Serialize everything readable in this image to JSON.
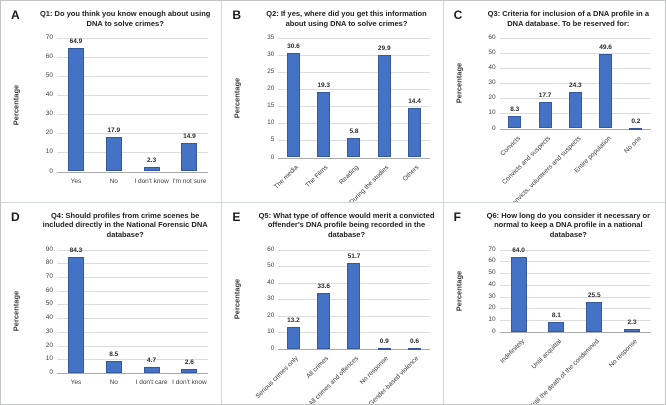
{
  "figure": {
    "background": "#ffffff",
    "border_color": "#c2c6c8"
  },
  "colors": {
    "bar_fill": "#4472c4",
    "bar_border": "#35599c",
    "gridline": "#dcdcdc",
    "axis_line": "#a9a9a9",
    "tick_text": "#404040",
    "title_text": "#212121"
  },
  "chart_data": [
    {
      "panel": "A",
      "type": "bar",
      "title": "Q1: Do you think you know enough about using DNA to solve crimes?",
      "ylabel": "Percentage",
      "xlabel": "",
      "ylim": [
        0,
        70
      ],
      "ytick_step": 10,
      "grid": true,
      "legend": false,
      "xlabel_rotation": 0,
      "categories": [
        "Yes",
        "No",
        "I don't know",
        "I'm not sure"
      ],
      "values": [
        64.9,
        17.9,
        2.3,
        14.9
      ],
      "value_labels": [
        "64.9",
        "17.9",
        "2.3",
        "14.9"
      ]
    },
    {
      "panel": "B",
      "type": "bar",
      "title": "Q2: If yes, where did you get this information about using DNA to solve crimes?",
      "ylabel": "Percentage",
      "xlabel": "",
      "ylim": [
        0,
        35
      ],
      "ytick_step": 5,
      "grid": true,
      "legend": false,
      "xlabel_rotation": 45,
      "categories": [
        "The media",
        "The Films",
        "Reading",
        "During the studies",
        "Others"
      ],
      "values": [
        30.6,
        19.3,
        5.8,
        29.9,
        14.4
      ],
      "value_labels": [
        "30.6",
        "19.3",
        "5.8",
        "29.9",
        "14.4"
      ]
    },
    {
      "panel": "C",
      "type": "bar",
      "title": "Q3: Criteria for inclusion of a DNA profile in a DNA database. To be reserved for:",
      "ylabel": "Percentage",
      "xlabel": "",
      "ylim": [
        0,
        60
      ],
      "ytick_step": 10,
      "grid": true,
      "legend": false,
      "xlabel_rotation": 45,
      "categories": [
        "Convicts",
        "Convicts and suspects",
        "Convicts, volunteers and suspects",
        "Entire population",
        "No one"
      ],
      "values": [
        8.3,
        17.7,
        24.3,
        49.6,
        0.2
      ],
      "value_labels": [
        "8.3",
        "17.7",
        "24.3",
        "49.6",
        "0.2"
      ]
    },
    {
      "panel": "D",
      "type": "bar",
      "title": "Q4: Should profiles from crime scenes be included directly in the National Forensic DNA database?",
      "ylabel": "Percentage",
      "xlabel": "",
      "ylim": [
        0,
        90
      ],
      "ytick_step": 10,
      "grid": true,
      "legend": false,
      "xlabel_rotation": 0,
      "categories": [
        "Yes",
        "No",
        "I don't care",
        "I don't know"
      ],
      "values": [
        84.3,
        8.5,
        4.7,
        2.6
      ],
      "value_labels": [
        "84.3",
        "8.5",
        "4.7",
        "2.6"
      ]
    },
    {
      "panel": "E",
      "type": "bar",
      "title": "Q5: What type of offence would merit a convicted offender's DNA profile being recorded in the database?",
      "ylabel": "Percentage",
      "xlabel": "",
      "ylim": [
        0,
        60
      ],
      "ytick_step": 10,
      "grid": true,
      "legend": false,
      "xlabel_rotation": 45,
      "categories": [
        "Serious crimes only",
        "All crimes",
        "All crimes and offences",
        "No response",
        "Gender-based violence"
      ],
      "values": [
        13.2,
        33.6,
        51.7,
        0.9,
        0.6
      ],
      "value_labels": [
        "13.2",
        "33.6",
        "51.7",
        "0.9",
        "0.6"
      ]
    },
    {
      "panel": "F",
      "type": "bar",
      "title": "Q6: How long do you consider it necessary or normal to keep a DNA profile in a national database?",
      "ylabel": "Percentage",
      "xlabel": "",
      "ylim": [
        0,
        70
      ],
      "ytick_step": 10,
      "grid": true,
      "legend": false,
      "xlabel_rotation": 45,
      "categories": [
        "Indefinitely",
        "Until acquittal",
        "Until the death of the condemned",
        "No response"
      ],
      "values": [
        64.0,
        8.1,
        25.5,
        2.3
      ],
      "value_labels": [
        "64.0",
        "8.1",
        "25.5",
        "2.3"
      ]
    }
  ]
}
